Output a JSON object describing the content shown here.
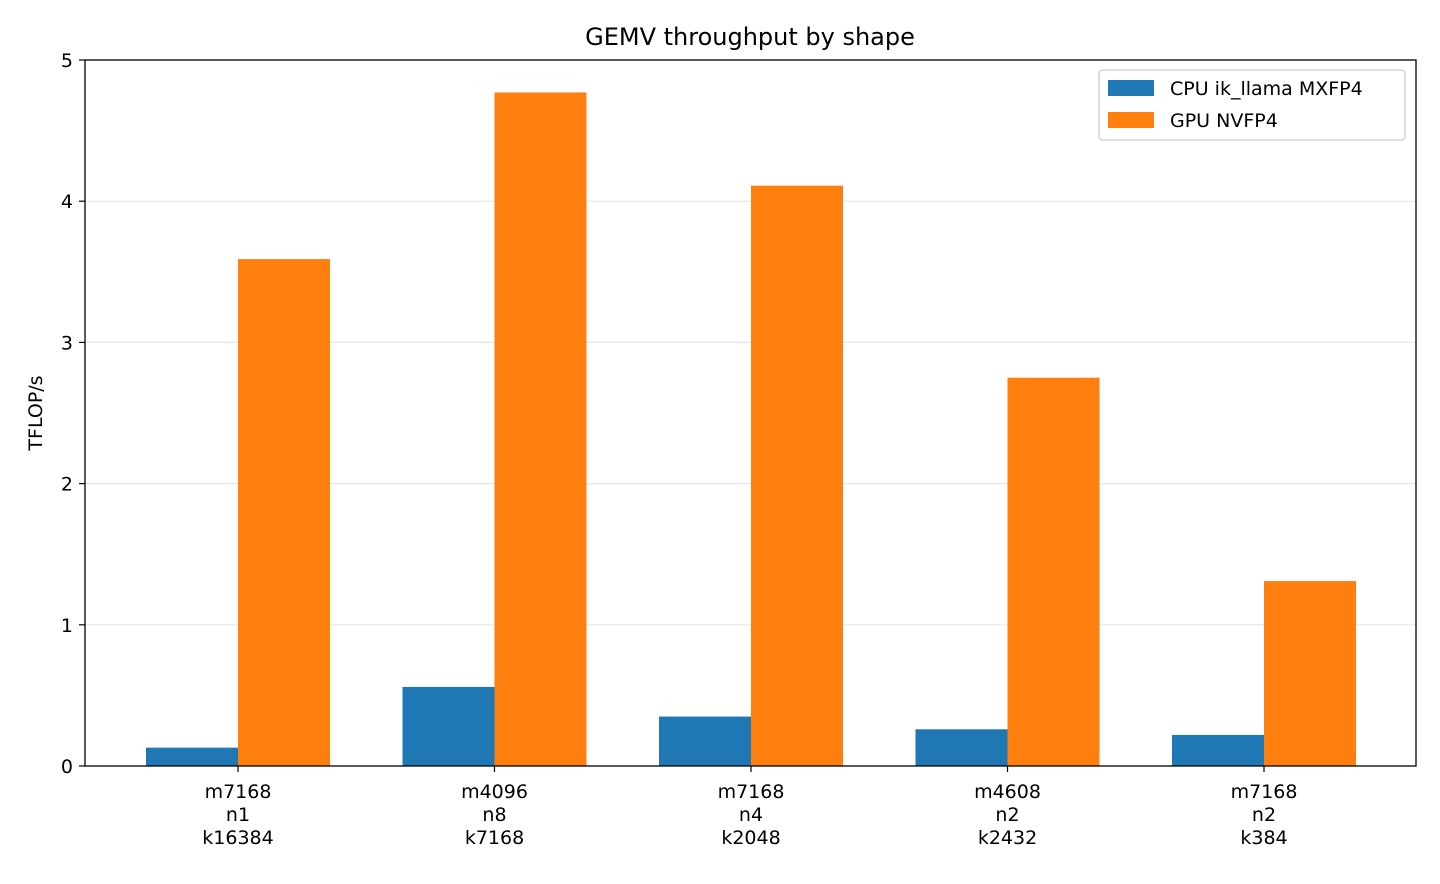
{
  "chart_data": {
    "type": "bar",
    "title": "GEMV throughput by shape",
    "xlabel": "",
    "ylabel": "TFLOP/s",
    "ylim": [
      0,
      5
    ],
    "yticks": [
      "0",
      "1",
      "2",
      "3",
      "4",
      "5"
    ],
    "categories": [
      [
        "m7168",
        "n1",
        "k16384"
      ],
      [
        "m4096",
        "n8",
        "k7168"
      ],
      [
        "m7168",
        "n4",
        "k2048"
      ],
      [
        "m4608",
        "n2",
        "k2432"
      ],
      [
        "m7168",
        "n2",
        "k384"
      ]
    ],
    "series": [
      {
        "name": "CPU ik_llama MXFP4",
        "color": "#1f77b4",
        "values": [
          0.13,
          0.56,
          0.35,
          0.26,
          0.22
        ]
      },
      {
        "name": "GPU NVFP4",
        "color": "#ff7f0e",
        "values": [
          3.59,
          4.77,
          4.11,
          2.75,
          1.31
        ]
      }
    ],
    "grid": "y",
    "legend": "top-right"
  }
}
